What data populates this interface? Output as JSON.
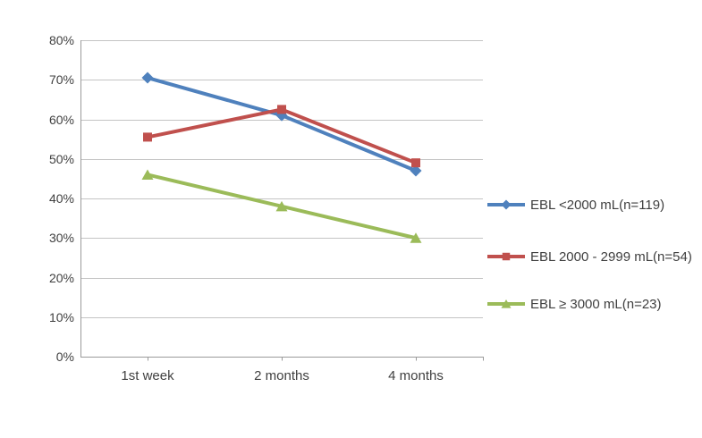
{
  "chart_data": {
    "type": "line",
    "title": "",
    "xlabel": "",
    "ylabel": "",
    "categories": [
      "1st week",
      "2 months",
      "4 months"
    ],
    "series": [
      {
        "name": "EBL <2000 mL(n=119)",
        "values": [
          70.5,
          61,
          47
        ],
        "color": "#4F81BD",
        "marker": "diamond"
      },
      {
        "name": "EBL 2000 - 2999 mL(n=54)",
        "values": [
          55.5,
          62.5,
          49
        ],
        "color": "#C0504D",
        "marker": "square"
      },
      {
        "name": "EBL ≥ 3000 mL(n=23)",
        "values": [
          46,
          38,
          30
        ],
        "color": "#9BBB59",
        "marker": "triangle"
      }
    ],
    "ylim": [
      0,
      80
    ],
    "ytick_step": 10,
    "ytick_labels": [
      "0%",
      "10%",
      "20%",
      "30%",
      "40%",
      "50%",
      "60%",
      "70%",
      "80%"
    ],
    "grid": true,
    "legend_position": "right"
  },
  "colors": {
    "gridline": "#C4C4C4",
    "axis": "#9A9A9A",
    "text": "#3F3F3F",
    "background": "#FFFFFF"
  }
}
